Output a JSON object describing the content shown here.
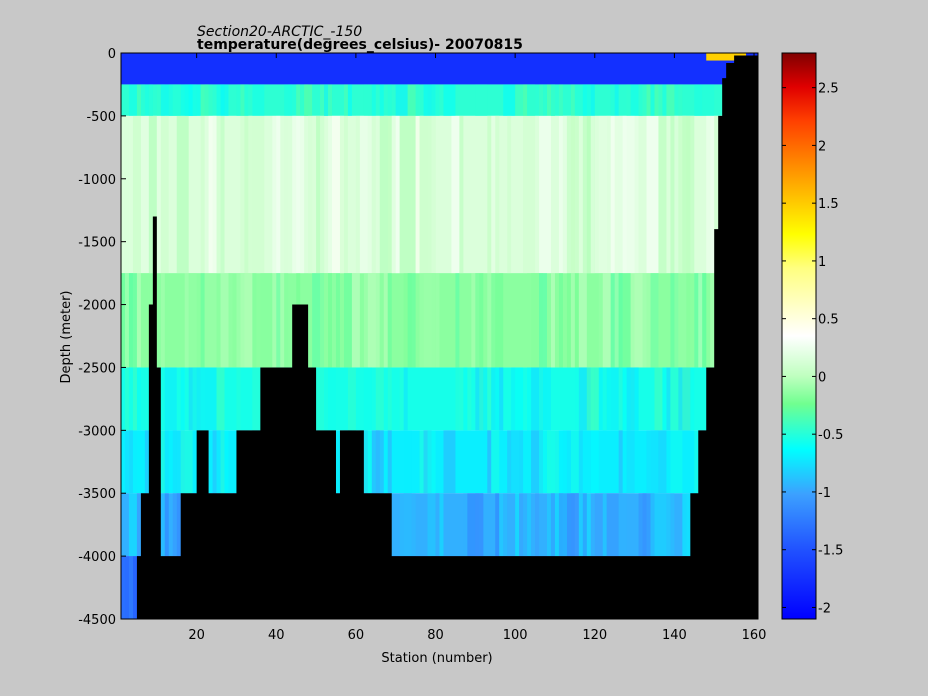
{
  "chart_data": {
    "type": "heatmap",
    "title": "Section20-ARCTIC_-150",
    "subtitle": "temperature(degrees_celsius)- 20070815",
    "xlabel": "Station (number)",
    "ylabel": "Depth (meter)",
    "xlim": [
      1,
      161
    ],
    "ylim": [
      -4500,
      0
    ],
    "xticks": [
      20,
      40,
      60,
      80,
      100,
      120,
      140,
      160
    ],
    "yticks": [
      0,
      -500,
      -1000,
      -1500,
      -2000,
      -2500,
      -3000,
      -3500,
      -4000,
      -4500
    ],
    "colorbar": {
      "range": [
        -2.1,
        2.8
      ],
      "ticks": [
        -2,
        -1.5,
        -1,
        -0.5,
        0,
        0.5,
        1,
        1.5,
        2,
        2.5
      ],
      "colormap": "jet",
      "colors": [
        "#0000ff",
        "#3c78ff",
        "#00ffff",
        "#7cff7c",
        "#ffffff",
        "#ffff00",
        "#ff7f00",
        "#ff0000",
        "#800000"
      ]
    },
    "layers": [
      {
        "from_depth": 0,
        "to_depth": -250,
        "temperature": -1.8
      },
      {
        "from_depth": -250,
        "to_depth": -500,
        "temperature": -0.6
      },
      {
        "from_depth": -500,
        "to_depth": -1750,
        "temperature": 0.15
      },
      {
        "from_depth": -1750,
        "to_depth": -2500,
        "temperature": -0.2
      },
      {
        "from_depth": -2500,
        "to_depth": -3000,
        "temperature": -0.7
      },
      {
        "from_depth": -3000,
        "to_depth": -3500,
        "temperature": -0.85
      },
      {
        "from_depth": -3500,
        "to_depth": -4000,
        "temperature": -1.05
      },
      {
        "from_depth": -4000,
        "to_depth": -4500,
        "temperature": -1.4
      }
    ],
    "surface_warm_patch": {
      "station_range": [
        148,
        158
      ],
      "depth_range": [
        0,
        -60
      ],
      "temperature": 1.5
    },
    "bathymetry_note": "black area = seafloor",
    "bathymetry": [
      [
        1,
        -4500
      ],
      [
        5,
        -4500
      ],
      [
        5,
        -4000
      ],
      [
        6,
        -4000
      ],
      [
        6,
        -3500
      ],
      [
        8,
        -3500
      ],
      [
        8,
        -2000
      ],
      [
        9,
        -2000
      ],
      [
        9,
        -1300
      ],
      [
        10,
        -1300
      ],
      [
        10,
        -2500
      ],
      [
        11,
        -2500
      ],
      [
        11,
        -4000
      ],
      [
        16,
        -4000
      ],
      [
        16,
        -3500
      ],
      [
        20,
        -3500
      ],
      [
        20,
        -3000
      ],
      [
        23,
        -3000
      ],
      [
        23,
        -3500
      ],
      [
        30,
        -3500
      ],
      [
        30,
        -3000
      ],
      [
        36,
        -3000
      ],
      [
        36,
        -2500
      ],
      [
        44,
        -2500
      ],
      [
        44,
        -2000
      ],
      [
        48,
        -2000
      ],
      [
        48,
        -2500
      ],
      [
        50,
        -2500
      ],
      [
        50,
        -3000
      ],
      [
        55,
        -3000
      ],
      [
        55,
        -3500
      ],
      [
        56,
        -3500
      ],
      [
        56,
        -3000
      ],
      [
        62,
        -3000
      ],
      [
        62,
        -3500
      ],
      [
        69,
        -3500
      ],
      [
        69,
        -4000
      ],
      [
        144,
        -4000
      ],
      [
        144,
        -3500
      ],
      [
        146,
        -3500
      ],
      [
        146,
        -3000
      ],
      [
        148,
        -3000
      ],
      [
        148,
        -2500
      ],
      [
        150,
        -2500
      ],
      [
        150,
        -1400
      ],
      [
        151,
        -1400
      ],
      [
        151,
        -500
      ],
      [
        152,
        -500
      ],
      [
        152,
        -200
      ],
      [
        153,
        -200
      ],
      [
        153,
        -80
      ],
      [
        155,
        -80
      ],
      [
        155,
        -20
      ],
      [
        161,
        -20
      ]
    ]
  }
}
